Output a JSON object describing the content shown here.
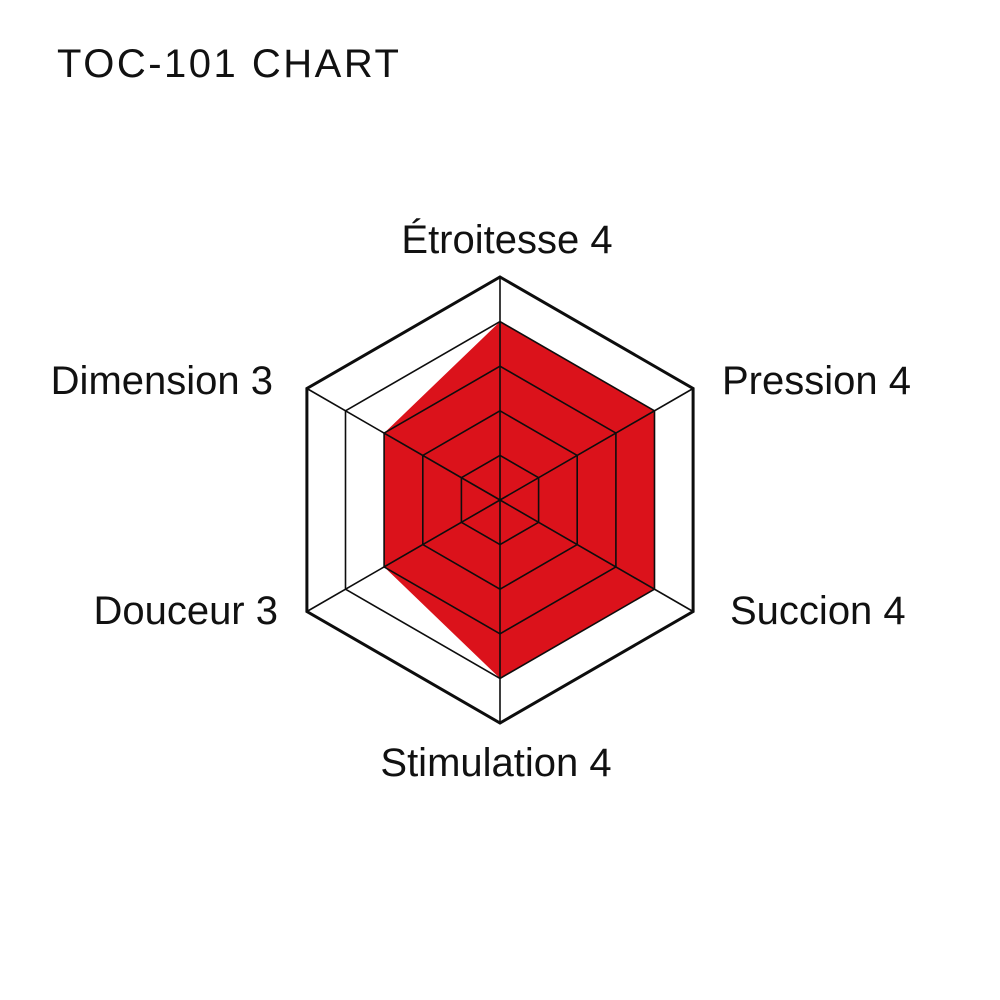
{
  "title": "TOC-101 CHART",
  "chart_data": {
    "type": "radar",
    "categories": [
      "Étroitesse",
      "Pression",
      "Succion",
      "Stimulation",
      "Douceur",
      "Dimension"
    ],
    "values": [
      4,
      4,
      4,
      4,
      3,
      3
    ],
    "max": 5,
    "grid_rings": 5,
    "axis_labels": [
      "Étroitesse 4",
      "Pression 4",
      "Succion 4",
      "Stimulation 4",
      "Douceur 3",
      "Dimension 3"
    ],
    "fill_color": "#DB121B",
    "grid_color": "#0d0d0d",
    "background": "#FFFFFF",
    "legend": "none"
  }
}
